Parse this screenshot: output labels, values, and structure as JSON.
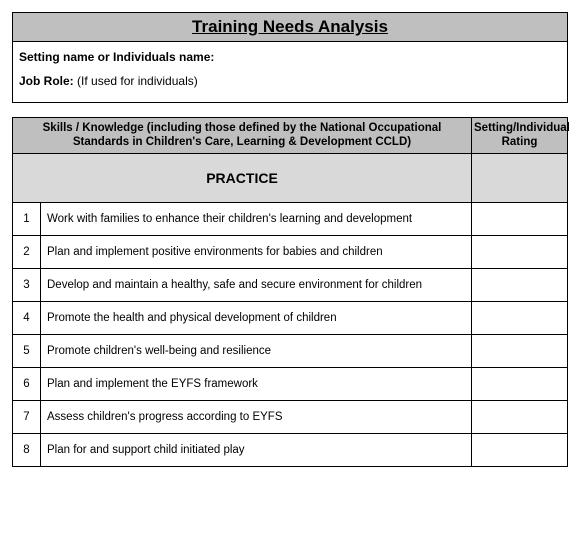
{
  "header": {
    "title": "Training Needs Analysis",
    "fields": [
      {
        "label": "Setting name or Individuals name:",
        "value": ""
      },
      {
        "label": "Job Role:",
        "value": "(If used for individuals)"
      }
    ]
  },
  "table": {
    "columns": {
      "skills": "Skills / Knowledge (including those defined by the National Occupational Standards in Children's Care, Learning & Development CCLD)",
      "rating": "Setting/Individual Rating"
    },
    "section_heading": "PRACTICE",
    "rows": [
      {
        "num": "1",
        "text": "Work with families to enhance their children's learning and development"
      },
      {
        "num": "2",
        "text": "Plan and implement positive environments for babies and children"
      },
      {
        "num": "3",
        "text": "Develop and maintain a healthy, safe and secure environment for children"
      },
      {
        "num": "4",
        "text": "Promote the health and physical development of children"
      },
      {
        "num": "5",
        "text": "Promote children's well-being and resilience"
      },
      {
        "num": "6",
        "text": "Plan and implement the EYFS  framework"
      },
      {
        "num": "7",
        "text": "Assess children's progress according to EYFS"
      },
      {
        "num": "8",
        "text": "Plan for and support child initiated play"
      }
    ],
    "col_widths": {
      "num": 28,
      "rating": 96
    },
    "colors": {
      "header_bg": "#bfbfbf",
      "section_bg": "#d9d9d9",
      "border": "#000000",
      "page_bg": "#ffffff"
    }
  }
}
